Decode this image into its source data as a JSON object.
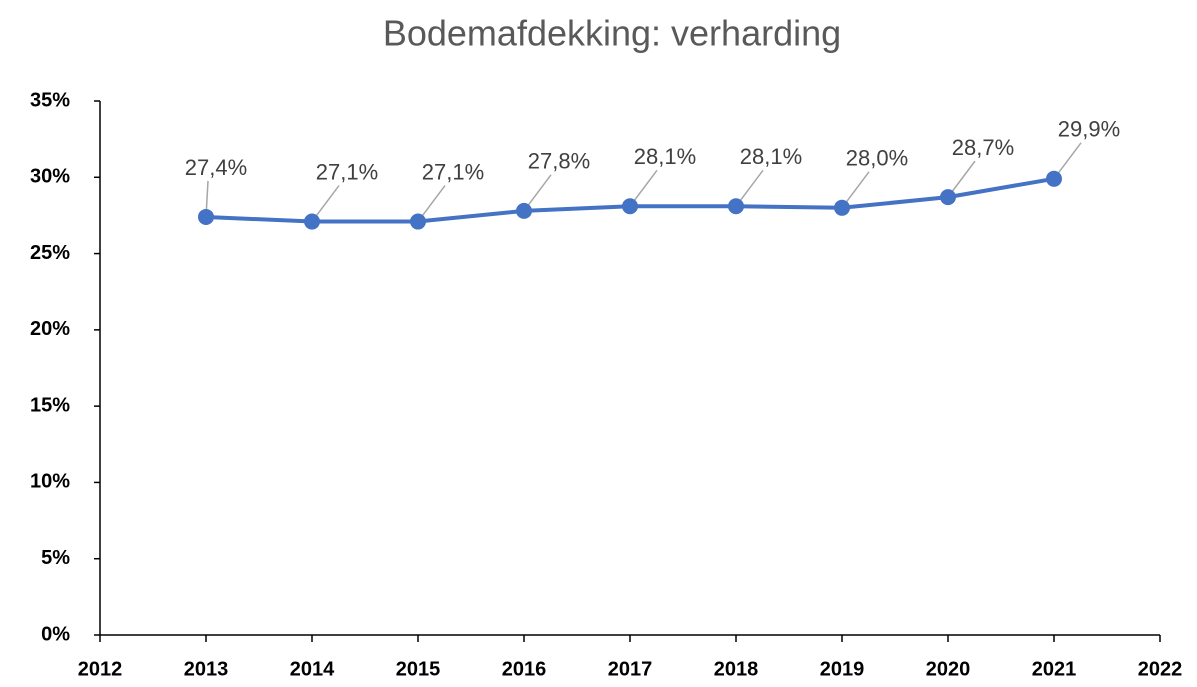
{
  "chart_data": {
    "type": "line",
    "title": "Bodemafdekking: verharding",
    "x": [
      2013,
      2014,
      2015,
      2016,
      2017,
      2018,
      2019,
      2020,
      2021
    ],
    "series": [
      {
        "name": "verharding",
        "color": "#4472c4",
        "values": [
          27.4,
          27.1,
          27.1,
          27.8,
          28.1,
          28.1,
          28.0,
          28.7,
          29.9
        ],
        "value_labels": [
          "27,4%",
          "27,1%",
          "27,1%",
          "27,8%",
          "28,1%",
          "28,1%",
          "28,0%",
          "28,7%",
          "29,9%"
        ]
      }
    ],
    "xlim": [
      2012,
      2022
    ],
    "xticks": [
      2012,
      2013,
      2014,
      2015,
      2016,
      2017,
      2018,
      2019,
      2020,
      2021,
      2022
    ],
    "ylim": [
      0,
      35
    ],
    "yticks": [
      {
        "value": 0,
        "label": "0%"
      },
      {
        "value": 5,
        "label": "5%"
      },
      {
        "value": 10,
        "label": "10%"
      },
      {
        "value": 15,
        "label": "15%"
      },
      {
        "value": 20,
        "label": "20%"
      },
      {
        "value": 25,
        "label": "25%"
      },
      {
        "value": 30,
        "label": "30%"
      },
      {
        "value": 35,
        "label": "35%"
      }
    ],
    "grid": false
  }
}
